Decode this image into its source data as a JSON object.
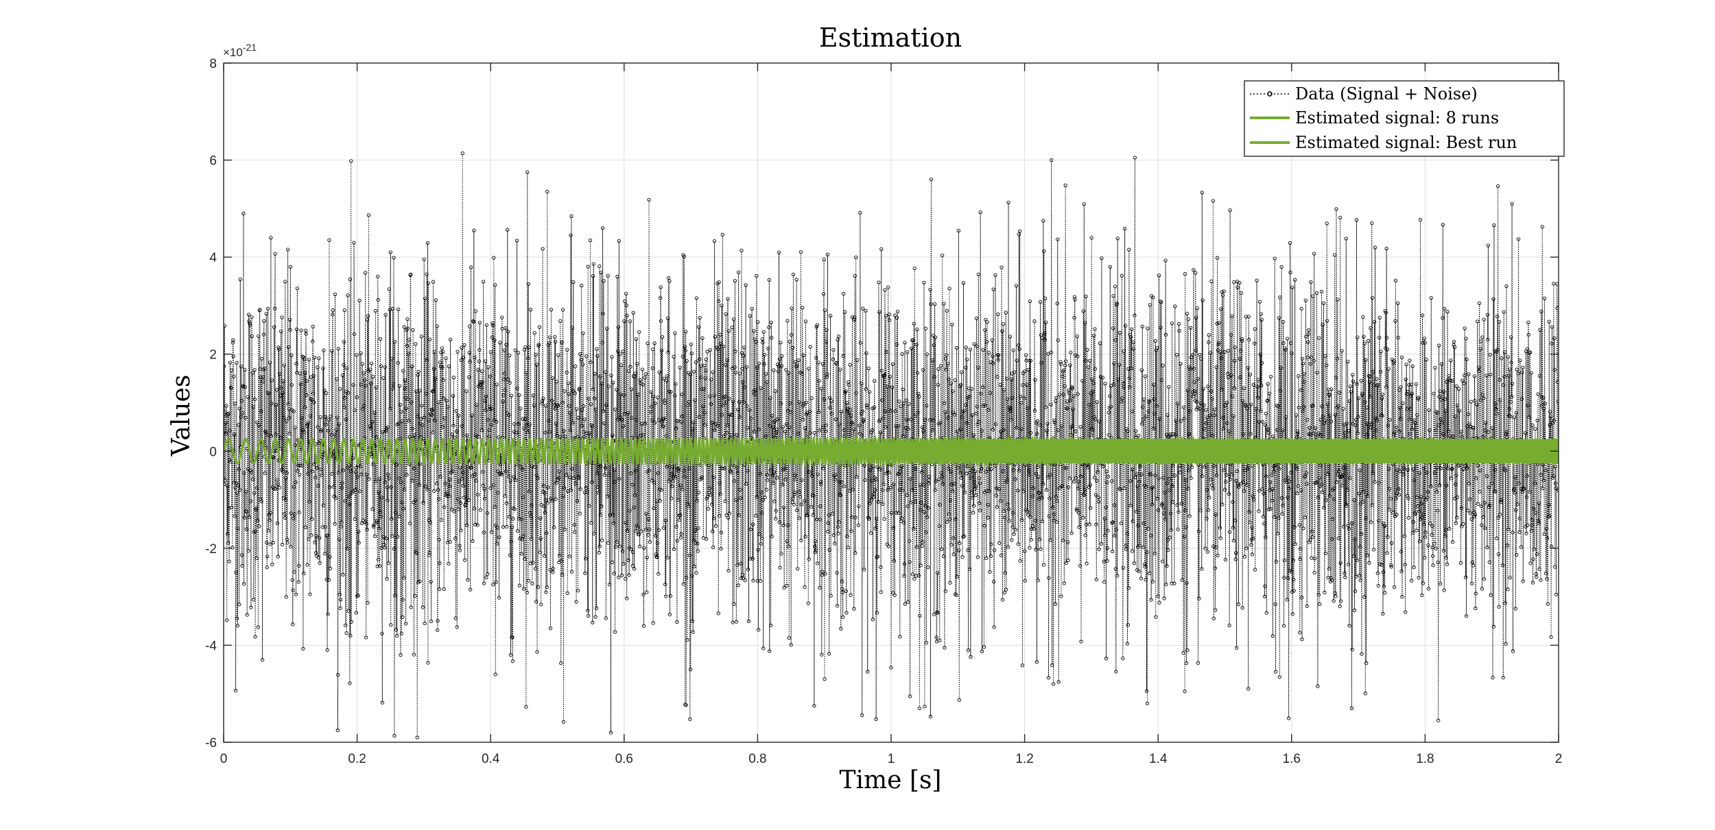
{
  "chart_data": {
    "type": "line",
    "title": "Estimation",
    "xlabel": "Time [s]",
    "ylabel": "Values",
    "y_exponent_label": "×10",
    "y_exponent_power": "-21",
    "xlim": [
      0,
      2
    ],
    "ylim": [
      -6,
      8
    ],
    "x_ticks": [
      0,
      0.2,
      0.4,
      0.6,
      0.8,
      1,
      1.2,
      1.4,
      1.6,
      1.8,
      2
    ],
    "x_tick_labels": [
      "0",
      "0.2",
      "0.4",
      "0.6",
      "0.8",
      "1",
      "1.2",
      "1.4",
      "1.6",
      "1.8",
      "2"
    ],
    "y_ticks": [
      -6,
      -4,
      -2,
      0,
      2,
      4,
      6,
      8
    ],
    "y_tick_labels": [
      "-6",
      "-4",
      "-2",
      "0",
      "2",
      "4",
      "6",
      "8"
    ],
    "grid": true,
    "legend_position": "top-right",
    "series": [
      {
        "name": "Data (Signal + Noise)",
        "style": "dotted-with-circle-markers",
        "color": "#000000",
        "sample_rate_hz": 2048,
        "envelope_std": 1.8,
        "min": -5.8,
        "max": 6.0,
        "peak_points": [
          [
            0.03,
            4.9
          ],
          [
            0.058,
            -4.3
          ],
          [
            0.1,
            3.8
          ],
          [
            0.158,
            4.35
          ],
          [
            0.19,
            -3.8
          ],
          [
            0.25,
            4.1
          ],
          [
            0.265,
            -4.2
          ],
          [
            0.375,
            4.55
          ],
          [
            0.43,
            -4.2
          ],
          [
            0.455,
            5.75
          ],
          [
            0.485,
            5.35
          ],
          [
            0.52,
            4.45
          ],
          [
            0.58,
            -5.8
          ],
          [
            0.59,
            3.6
          ],
          [
            0.885,
            -5.25
          ],
          [
            1.06,
            5.6
          ],
          [
            1.08,
            -4.05
          ],
          [
            1.24,
            6.0
          ],
          [
            1.365,
            6.05
          ],
          [
            1.44,
            -4.95
          ],
          [
            1.69,
            -5.3
          ],
          [
            1.72,
            4.7
          ],
          [
            1.82,
            -5.55
          ],
          [
            1.93,
            5.1
          ]
        ]
      },
      {
        "name": "Estimated signal: 8 runs",
        "style": "solid",
        "color": "#77ac30",
        "amplitude": 0.25,
        "chirp_frequency_start_hz": 35,
        "chirp_frequency_end_hz": 400
      },
      {
        "name": "Estimated signal: Best run",
        "style": "solid",
        "color": "#77ac30",
        "amplitude": 0.25,
        "chirp_frequency_start_hz": 35,
        "chirp_frequency_end_hz": 400
      }
    ]
  }
}
